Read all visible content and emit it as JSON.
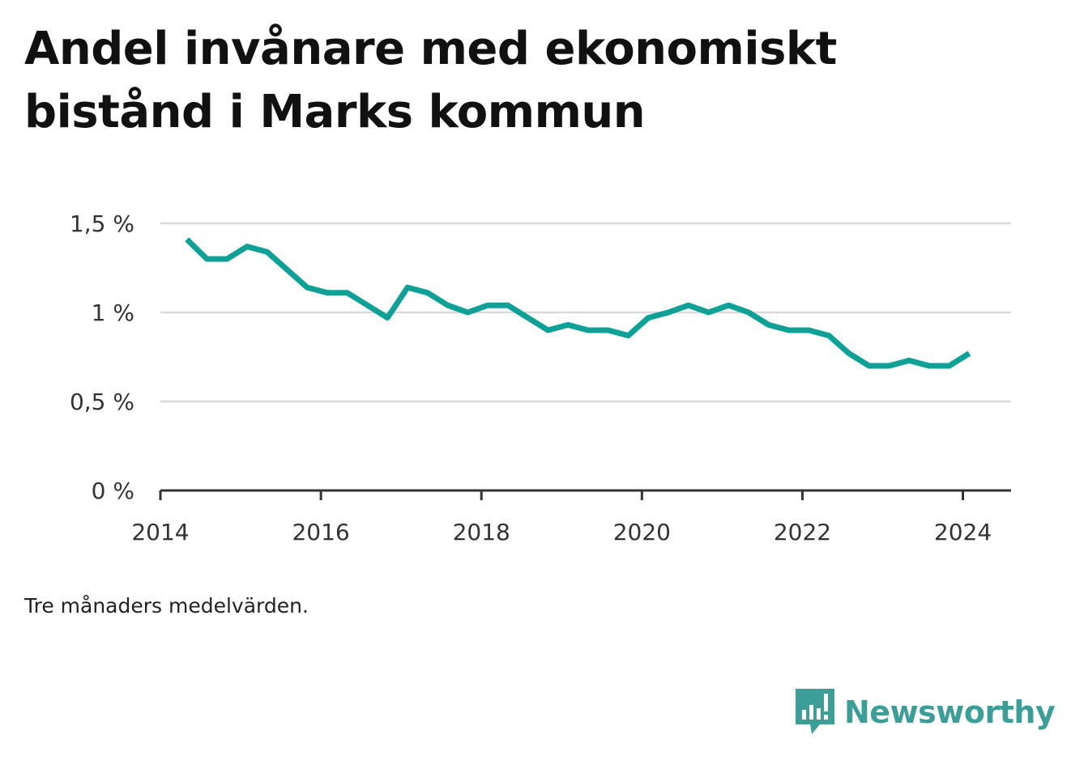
{
  "title": "Andel invånare med ekonomiskt bistånd i Marks kommun",
  "note": "Tre månaders medelvärden.",
  "brand": {
    "name": "Newsworthy",
    "icon": "newsworthy-logo-icon",
    "color": "#3d9d97"
  },
  "colors": {
    "line": "#0fa197",
    "grid": "#d9d9d9",
    "axis": "#333333"
  },
  "chart_data": {
    "type": "line",
    "title": "Andel invånare med ekonomiskt bistånd i Marks kommun",
    "xlabel": "",
    "ylabel": "",
    "xlim": [
      2014,
      2024.6
    ],
    "ylim": [
      0,
      1.5
    ],
    "x_ticks": [
      2014,
      2016,
      2018,
      2020,
      2022,
      2024
    ],
    "x_tick_labels": [
      "2014",
      "2016",
      "2018",
      "2020",
      "2022",
      "2024"
    ],
    "y_ticks": [
      0,
      0.5,
      1,
      1.5
    ],
    "y_tick_labels": [
      "0 %",
      "0,5 %",
      "1 %",
      "1,5 %"
    ],
    "grid": true,
    "series": [
      {
        "x": [
          2014.33,
          2014.58,
          2014.83,
          2015.08,
          2015.33,
          2015.58,
          2015.83,
          2016.08,
          2016.33,
          2016.58,
          2016.83,
          2017.08,
          2017.33,
          2017.58,
          2017.83,
          2018.08,
          2018.33,
          2018.58,
          2018.83,
          2019.08,
          2019.33,
          2019.58,
          2019.83,
          2020.08,
          2020.33,
          2020.58,
          2020.83,
          2021.08,
          2021.33,
          2021.58,
          2021.83,
          2022.08,
          2022.33,
          2022.58,
          2022.83,
          2023.08,
          2023.33,
          2023.58,
          2023.83,
          2024.08
        ],
        "y": [
          1.41,
          1.3,
          1.3,
          1.37,
          1.34,
          1.24,
          1.14,
          1.11,
          1.11,
          1.04,
          0.97,
          1.14,
          1.11,
          1.04,
          1.0,
          1.04,
          1.04,
          0.97,
          0.9,
          0.93,
          0.9,
          0.9,
          0.87,
          0.97,
          1.0,
          1.04,
          1.0,
          1.04,
          1.0,
          0.93,
          0.9,
          0.9,
          0.87,
          0.77,
          0.7,
          0.7,
          0.73,
          0.7,
          0.7,
          0.77
        ]
      }
    ]
  }
}
